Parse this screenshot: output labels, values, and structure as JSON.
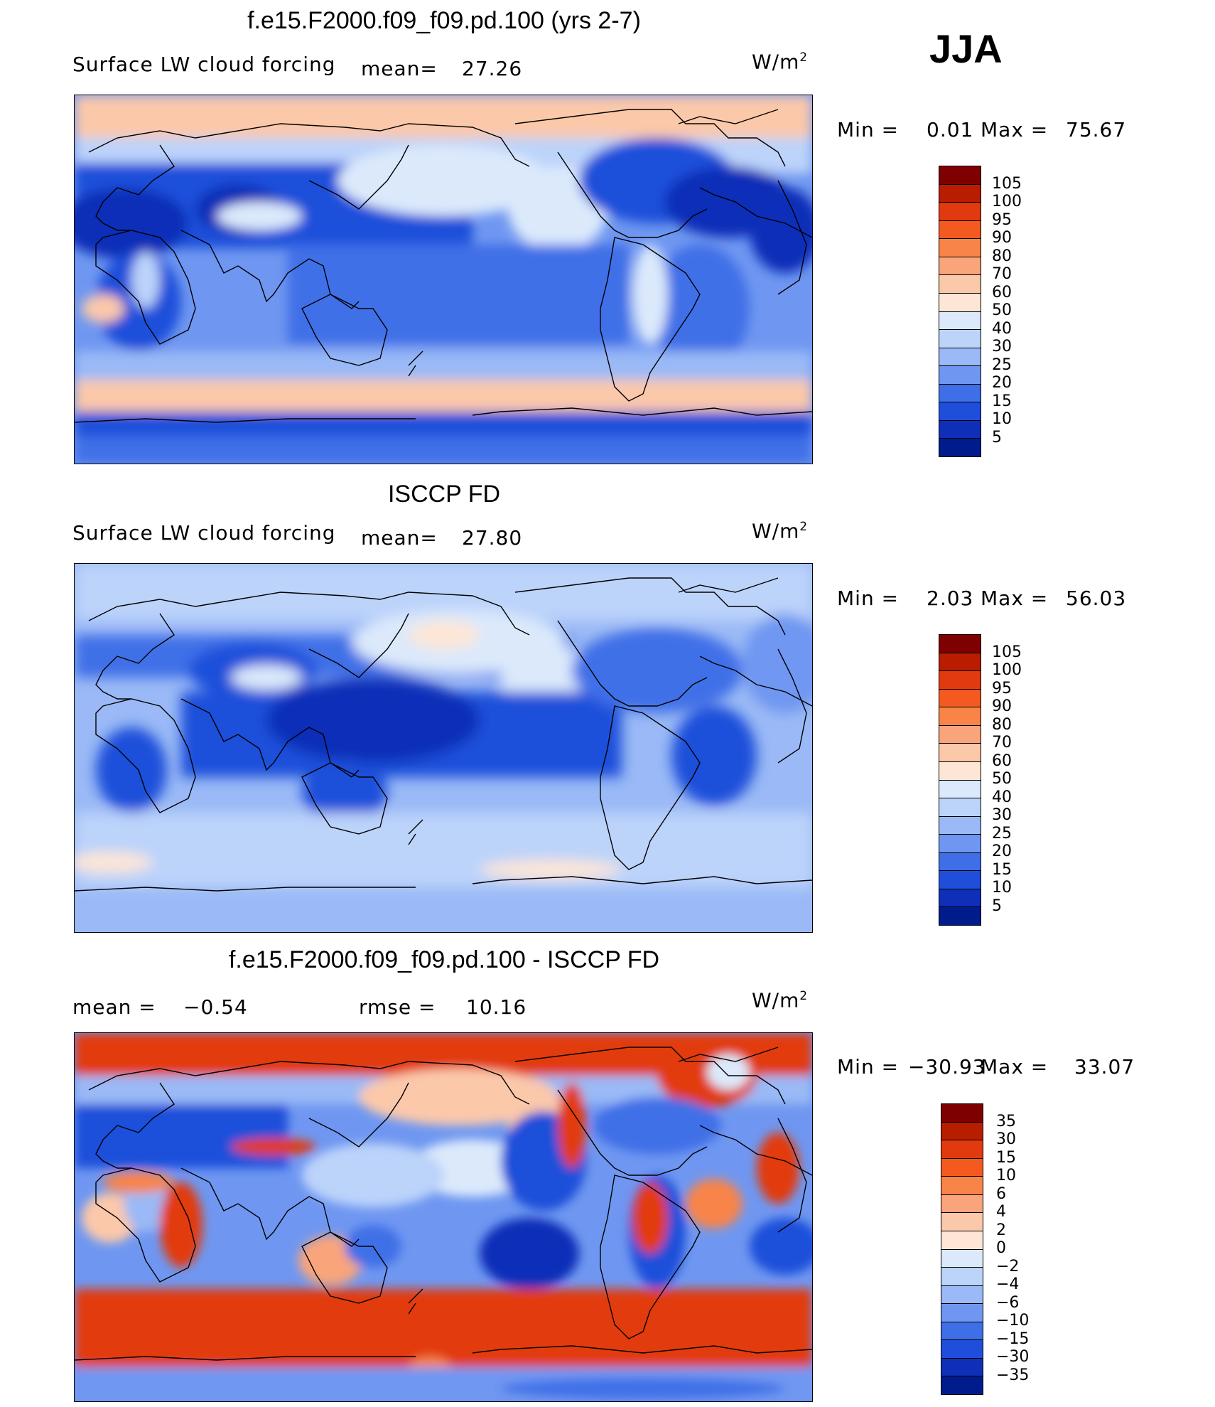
{
  "season": "JJA",
  "units": "W/m",
  "units_sup": "2",
  "panels": [
    {
      "title": "f.e15.F2000.f09_f09.pd.100 (yrs 2-7)",
      "left_label": "Surface LW cloud forcing",
      "stat1_label": "mean=",
      "stat1_value": "27.26",
      "min_label": "Min =",
      "min_value": "0.01",
      "max_label": "Max =",
      "max_value": "75.67",
      "levels": [
        "105",
        "100",
        "95",
        "90",
        "80",
        "70",
        "60",
        "50",
        "40",
        "30",
        "25",
        "20",
        "15",
        "10",
        "5"
      ]
    },
    {
      "title": "ISCCP FD",
      "left_label": "Surface LW cloud forcing",
      "stat1_label": "mean=",
      "stat1_value": "27.80",
      "min_label": "Min =",
      "min_value": "2.03",
      "max_label": "Max =",
      "max_value": "56.03",
      "levels": [
        "105",
        "100",
        "95",
        "90",
        "80",
        "70",
        "60",
        "50",
        "40",
        "30",
        "25",
        "20",
        "15",
        "10",
        "5"
      ]
    },
    {
      "title": "f.e15.F2000.f09_f09.pd.100 - ISCCP FD",
      "stat1_label": "mean =",
      "stat1_value": "−0.54",
      "stat2_label": "rmse =",
      "stat2_value": "10.16",
      "min_label": "Min =",
      "min_value": "−30.93",
      "max_label": "Max =",
      "max_value": "33.07",
      "levels": [
        "35",
        "30",
        "15",
        "10",
        "6",
        "4",
        "2",
        "0",
        "−2",
        "−4",
        "−6",
        "−10",
        "−15",
        "−30",
        "−35"
      ]
    }
  ],
  "colors": {
    "abs_scale": [
      "#7f0000",
      "#b81d00",
      "#e23a0f",
      "#f45a1f",
      "#f88448",
      "#f9a47a",
      "#fbc8aa",
      "#fde6d6",
      "#dbe9fb",
      "#bcd3fa",
      "#9ab9f6",
      "#6f97f1",
      "#3f6fe7",
      "#1f4fda",
      "#0f2fb8",
      "#001c8c"
    ],
    "diff_scale": [
      "#7f0000",
      "#b81d00",
      "#e23a0f",
      "#f45a1f",
      "#f88448",
      "#f9a47a",
      "#fbc8aa",
      "#fde6d6",
      "#dbe9fb",
      "#bcd3fa",
      "#9ab9f6",
      "#6f97f1",
      "#3f6fe7",
      "#1f4fda",
      "#0f2fb8",
      "#001c8c"
    ]
  }
}
